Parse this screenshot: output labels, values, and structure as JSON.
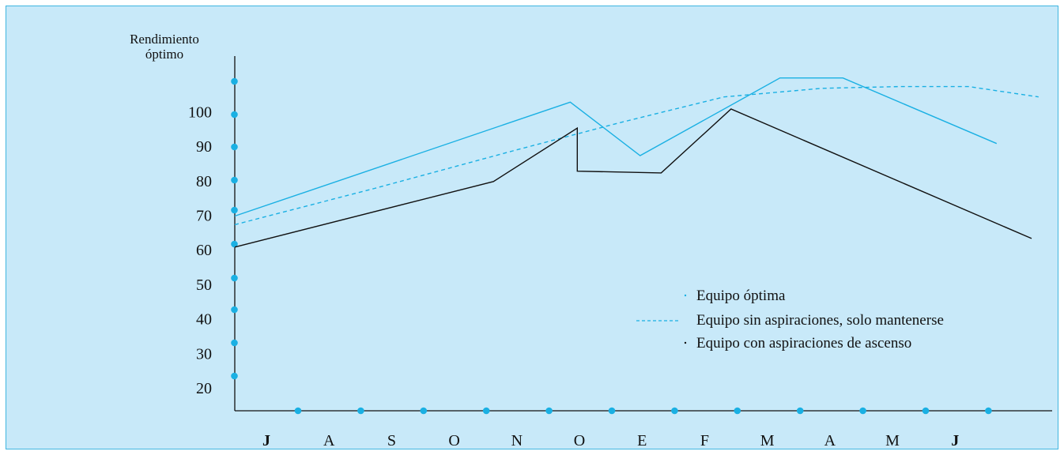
{
  "chart_data": {
    "type": "line",
    "ylabel": [
      "Rendimiento",
      "óptimo"
    ],
    "yticks": [
      100,
      90,
      80,
      70,
      60,
      50,
      40,
      30,
      20
    ],
    "ylim": [
      10,
      105
    ],
    "categories": [
      "J",
      "A",
      "S",
      "O",
      "N",
      "O",
      "E",
      "F",
      "M",
      "A",
      "M",
      "J"
    ],
    "grid": false,
    "legend_position": "center-right",
    "series": [
      {
        "name": "Equipo óptima",
        "style": "solid",
        "color": "#1ab0e3",
        "points": [
          [
            0,
            70
          ],
          [
            4.8,
            103
          ],
          [
            5.8,
            87.5
          ],
          [
            7.8,
            110
          ],
          [
            8.7,
            110
          ],
          [
            10.9,
            91
          ]
        ]
      },
      {
        "name": "Equipo sin aspiraciones, solo mantenerse",
        "style": "dashed",
        "color": "#1ab0e3",
        "points": [
          [
            0,
            67.5
          ],
          [
            2,
            78
          ],
          [
            4,
            89
          ],
          [
            5.5,
            97
          ],
          [
            7,
            104.5
          ],
          [
            8.4,
            107
          ],
          [
            9.5,
            107.5
          ],
          [
            10.5,
            107.5
          ],
          [
            11.5,
            104.5
          ]
        ]
      },
      {
        "name": "Equipo con aspiraciones de ascenso",
        "style": "solid",
        "color": "#111111",
        "points": [
          [
            0,
            61
          ],
          [
            3.7,
            80
          ],
          [
            4.9,
            95.5
          ],
          [
            4.9,
            83
          ],
          [
            6.1,
            82.5
          ],
          [
            7.1,
            101
          ],
          [
            11.4,
            63.5
          ]
        ]
      }
    ]
  },
  "colors": {
    "background": "#c8e9f9",
    "accent": "#1ab0e3",
    "axis": "#111111"
  }
}
